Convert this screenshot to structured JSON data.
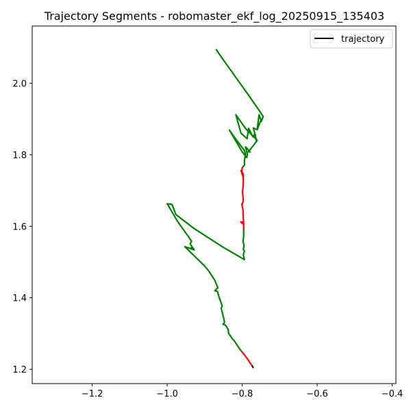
{
  "chart_data": {
    "type": "line",
    "title": "Trajectory Segments - robomaster_ekf_log_20250915_135403",
    "xlabel": "",
    "ylabel": "",
    "xlim": [
      -1.36,
      -0.39
    ],
    "ylim": [
      1.16,
      2.16
    ],
    "x_ticks": [
      -1.2,
      -1.0,
      -0.8,
      -0.6,
      -0.4
    ],
    "x_tick_labels": [
      "−1.2",
      "−1.0",
      "−0.8",
      "−0.6",
      "−0.4"
    ],
    "y_ticks": [
      1.2,
      1.4,
      1.6,
      1.8,
      2.0
    ],
    "y_tick_labels": [
      "1.2",
      "1.4",
      "1.6",
      "1.8",
      "2.0"
    ],
    "grid": false,
    "legend": {
      "position": "top-right",
      "entries": [
        {
          "label": "trajectory",
          "color": "#000000"
        }
      ]
    },
    "colors": {
      "green": "#008000",
      "red": "#ff0000",
      "black": "#000000"
    },
    "segments": [
      {
        "color": "green",
        "points": [
          [
            -0.869,
            2.094
          ],
          [
            -0.854,
            2.071
          ],
          [
            -0.82,
            2.021
          ],
          [
            -0.784,
            1.968
          ],
          [
            -0.752,
            1.92
          ],
          [
            -0.744,
            1.907
          ],
          [
            -0.749,
            1.893
          ],
          [
            -0.755,
            1.912
          ],
          [
            -0.76,
            1.872
          ],
          [
            -0.749,
            1.899
          ],
          [
            -0.76,
            1.87
          ],
          [
            -0.77,
            1.875
          ],
          [
            -0.762,
            1.838
          ],
          [
            -0.766,
            1.859
          ],
          [
            -0.771,
            1.85
          ],
          [
            -0.777,
            1.862
          ],
          [
            -0.783,
            1.874
          ],
          [
            -0.787,
            1.845
          ],
          [
            -0.803,
            1.86
          ],
          [
            -0.817,
            1.912
          ],
          [
            -0.79,
            1.872
          ],
          [
            -0.76,
            1.84
          ],
          [
            -0.776,
            1.818
          ],
          [
            -0.784,
            1.808
          ],
          [
            -0.779,
            1.808
          ],
          [
            -0.791,
            1.822
          ],
          [
            -0.786,
            1.8
          ],
          [
            -0.788,
            1.792
          ],
          [
            -0.8,
            1.808
          ],
          [
            -0.834,
            1.869
          ],
          [
            -0.818,
            1.845
          ],
          [
            -0.794,
            1.812
          ],
          [
            -0.791,
            1.801
          ],
          [
            -0.794,
            1.784
          ],
          [
            -0.794,
            1.771
          ],
          [
            -0.8,
            1.763
          ]
        ]
      },
      {
        "color": "red",
        "points": [
          [
            -0.8,
            1.763
          ],
          [
            -0.801,
            1.751
          ],
          [
            -0.797,
            1.736
          ],
          [
            -0.803,
            1.756
          ],
          [
            -0.797,
            1.746
          ],
          [
            -0.797,
            1.718
          ],
          [
            -0.799,
            1.696
          ],
          [
            -0.797,
            1.671
          ],
          [
            -0.8,
            1.662
          ],
          [
            -0.801,
            1.662
          ],
          [
            -0.798,
            1.646
          ],
          [
            -0.797,
            1.624
          ],
          [
            -0.796,
            1.605
          ],
          [
            -0.804,
            1.612
          ],
          [
            -0.8,
            1.612
          ],
          [
            -0.796,
            1.604
          ],
          [
            -0.796,
            1.588
          ]
        ]
      },
      {
        "color": "green",
        "points": [
          [
            -0.796,
            1.588
          ],
          [
            -0.796,
            1.571
          ],
          [
            -0.798,
            1.558
          ],
          [
            -0.795,
            1.546
          ],
          [
            -0.797,
            1.536
          ],
          [
            -0.794,
            1.531
          ],
          [
            -0.797,
            1.52
          ],
          [
            -0.794,
            1.507
          ],
          [
            -0.852,
            1.542
          ],
          [
            -0.93,
            1.595
          ],
          [
            -0.977,
            1.633
          ],
          [
            -0.987,
            1.661
          ],
          [
            -1.0,
            1.663
          ],
          [
            -0.972,
            1.613
          ],
          [
            -0.94,
            1.566
          ],
          [
            -0.935,
            1.558
          ],
          [
            -0.939,
            1.551
          ],
          [
            -0.929,
            1.536
          ],
          [
            -0.936,
            1.54
          ],
          [
            -0.928,
            1.534
          ],
          [
            -0.953,
            1.543
          ],
          [
            -0.9,
            1.489
          ],
          [
            -0.888,
            1.473
          ],
          [
            -0.873,
            1.449
          ],
          [
            -0.865,
            1.428
          ],
          [
            -0.873,
            1.42
          ],
          [
            -0.866,
            1.418
          ],
          [
            -0.862,
            1.403
          ],
          [
            -0.858,
            1.391
          ],
          [
            -0.853,
            1.377
          ],
          [
            -0.856,
            1.371
          ],
          [
            -0.853,
            1.359
          ],
          [
            -0.849,
            1.342
          ],
          [
            -0.847,
            1.331
          ],
          [
            -0.851,
            1.326
          ],
          [
            -0.845,
            1.324
          ],
          [
            -0.84,
            1.316
          ],
          [
            -0.837,
            1.31
          ],
          [
            -0.836,
            1.3
          ],
          [
            -0.831,
            1.293
          ],
          [
            -0.826,
            1.285
          ],
          [
            -0.822,
            1.281
          ],
          [
            -0.817,
            1.273
          ],
          [
            -0.812,
            1.265
          ],
          [
            -0.806,
            1.256
          ],
          [
            -0.8,
            1.248
          ]
        ]
      },
      {
        "color": "red",
        "points": [
          [
            -0.8,
            1.248
          ],
          [
            -0.793,
            1.239
          ],
          [
            -0.784,
            1.226
          ],
          [
            -0.777,
            1.215
          ],
          [
            -0.773,
            1.209
          ]
        ]
      },
      {
        "color": "black",
        "points": [
          [
            -0.773,
            1.209
          ],
          [
            -0.771,
            1.205
          ]
        ]
      }
    ]
  }
}
